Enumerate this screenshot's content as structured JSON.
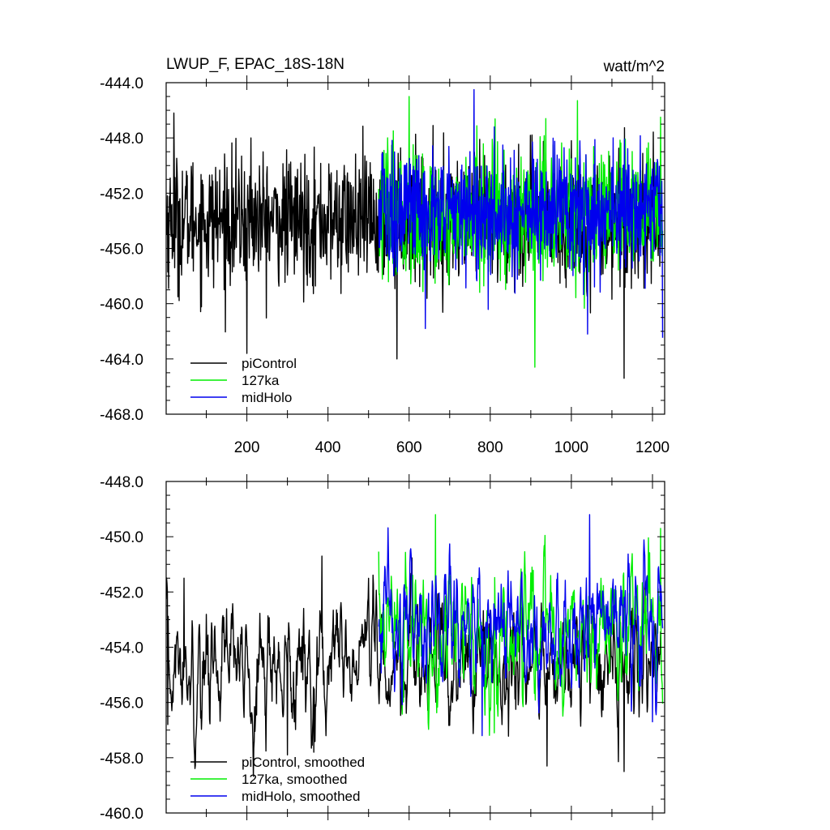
{
  "chart_data": [
    {
      "type": "line",
      "title": "LWUP_F, EPAC_18S-18N",
      "units": "watt/m^2",
      "xlim": [
        1,
        1230
      ],
      "ylim": [
        -468,
        -444
      ],
      "x_ticks": [
        200,
        400,
        600,
        800,
        1000,
        1200
      ],
      "x_tick_labels": [
        "200",
        "400",
        "600",
        "800",
        "1000",
        "1200"
      ],
      "y_ticks": [
        -444,
        -448,
        -452,
        -456,
        -460,
        -464,
        -468
      ],
      "y_tick_labels": [
        "-444.0",
        "-448.0",
        "-452.0",
        "-456.0",
        "-460.0",
        "-464.0",
        "-468.0"
      ],
      "legend_position": "bottom-left",
      "series": [
        {
          "name": "piControl",
          "color": "#000000",
          "x_range": [
            1,
            1220
          ],
          "mean": -454.0,
          "sd": 2.3,
          "smoothing": 1,
          "extremes": [
            [
              20,
              -446.2
            ],
            [
              30,
              -459.5
            ],
            [
              200,
              -463.6
            ],
            [
              210,
              -448.0
            ],
            [
              570,
              -464.0
            ],
            [
              1000,
              -448.2
            ],
            [
              1130,
              -465.4
            ]
          ]
        },
        {
          "name": "127ka",
          "color": "#00ee00",
          "x_range": [
            525,
            1225
          ],
          "mean": -453.6,
          "sd": 2.4,
          "smoothing": 1,
          "extremes": [
            [
              600,
              -445.0
            ],
            [
              910,
              -464.6
            ],
            [
              1015,
              -445.3
            ],
            [
              1220,
              -446.5
            ]
          ]
        },
        {
          "name": "midHolo",
          "color": "#0000ee",
          "x_range": [
            525,
            1225
          ],
          "mean": -453.3,
          "sd": 2.3,
          "smoothing": 1,
          "extremes": [
            [
              760,
              -444.5
            ],
            [
              640,
              -461.8
            ],
            [
              1040,
              -462.2
            ]
          ]
        }
      ]
    },
    {
      "type": "line",
      "title": "",
      "units": "",
      "xlim": [
        1,
        1230
      ],
      "ylim": [
        -460,
        -448
      ],
      "x_ticks": [
        200,
        400,
        600,
        800,
        1000,
        1200
      ],
      "x_tick_labels": [],
      "y_ticks": [
        -448,
        -450,
        -452,
        -454,
        -456,
        -458,
        -460
      ],
      "y_tick_labels": [
        "-448.0",
        "-450.0",
        "-452.0",
        "-454.0",
        "-456.0",
        "-458.0",
        "-460.0"
      ],
      "legend_position": "bottom-left",
      "series": [
        {
          "name": "piControl, smoothed",
          "color": "#000000",
          "x_range": [
            1,
            1220
          ],
          "mean": -454.6,
          "sd": 1.1,
          "smoothing": 5,
          "extremes": [
            [
              5,
              -456.8
            ],
            [
              45,
              -451.5
            ],
            [
              300,
              -457.9
            ],
            [
              365,
              -457.8
            ],
            [
              385,
              -450.7
            ],
            [
              940,
              -458.3
            ],
            [
              1130,
              -458.5
            ]
          ]
        },
        {
          "name": "127ka, smoothed",
          "color": "#00ee00",
          "x_range": [
            525,
            1225
          ],
          "mean": -453.5,
          "sd": 1.2,
          "smoothing": 5,
          "extremes": [
            [
              665,
              -449.2
            ],
            [
              810,
              -457.1
            ],
            [
              1220,
              -449.7
            ]
          ]
        },
        {
          "name": "midHolo, smoothed",
          "color": "#0000ee",
          "x_range": [
            525,
            1225
          ],
          "mean": -453.2,
          "sd": 1.1,
          "smoothing": 5,
          "extremes": [
            [
              1045,
              -449.2
            ],
            [
              780,
              -457.2
            ],
            [
              1200,
              -456.7
            ]
          ]
        }
      ]
    }
  ]
}
